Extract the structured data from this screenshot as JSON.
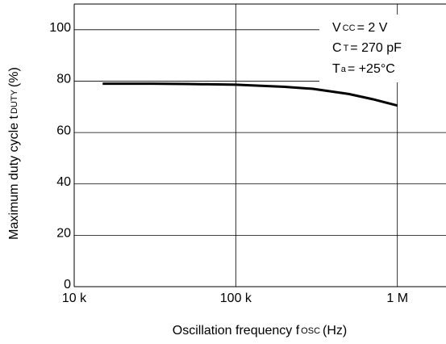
{
  "chart_data": {
    "type": "line",
    "x_label": {
      "main": "Oscillation frequency f",
      "sub": "OSC",
      "rest": "(Hz)"
    },
    "y_label": {
      "main": "Maximum duty cycle t",
      "sub": "DUTY",
      "rest": "(%)"
    },
    "annotations": [
      {
        "main": "V",
        "sub": "CC",
        "rest": "= 2 V"
      },
      {
        "main": "C",
        "sub": "T",
        "rest": "= 270 pF"
      },
      {
        "main": "T",
        "sub": "a",
        "rest": "= +25°C"
      }
    ],
    "x_scale": "log",
    "xlim": [
      10000,
      2000000
    ],
    "xticks": [
      {
        "value": 10000,
        "label": "10 k"
      },
      {
        "value": 100000,
        "label": "100 k"
      },
      {
        "value": 1000000,
        "label": "1 M"
      }
    ],
    "ylim": [
      0,
      110
    ],
    "yticks": [
      0,
      20,
      40,
      60,
      80,
      100
    ],
    "grid": true,
    "series": [
      {
        "color": "#000000",
        "x": [
          15000,
          30000,
          50000,
          100000,
          200000,
          300000,
          500000,
          700000,
          1000000
        ],
        "values": [
          79,
          79,
          78.9,
          78.6,
          77.8,
          77,
          75,
          73,
          70.5
        ]
      }
    ]
  }
}
